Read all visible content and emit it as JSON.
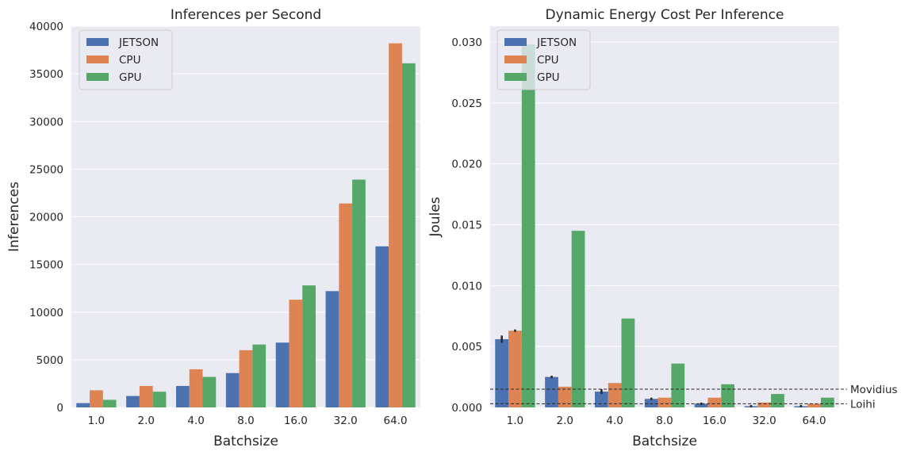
{
  "colors": {
    "JETSON": "#4c72b0",
    "CPU": "#dd8452",
    "GPU": "#55a868",
    "background": "#eaeaf2",
    "grid": "#ffffff",
    "errorbar": "#2b2b2b",
    "refline": "#262626"
  },
  "chart_data": [
    {
      "type": "bar",
      "title": "Inferences per Second",
      "xlabel": "Batchsize",
      "ylabel": "Inferences",
      "categories": [
        "1.0",
        "2.0",
        "4.0",
        "8.0",
        "16.0",
        "32.0",
        "64.0"
      ],
      "series": [
        {
          "name": "JETSON",
          "values": [
            450,
            1200,
            2250,
            3600,
            6800,
            12200,
            16900
          ]
        },
        {
          "name": "CPU",
          "values": [
            1800,
            2250,
            4000,
            6000,
            11300,
            21400,
            38200
          ]
        },
        {
          "name": "GPU",
          "values": [
            800,
            1650,
            3200,
            6600,
            12800,
            23900,
            36100
          ]
        }
      ],
      "ylim": [
        0,
        40000
      ],
      "yticks": [
        "0",
        "5000",
        "10000",
        "15000",
        "20000",
        "25000",
        "30000",
        "35000",
        "40000"
      ],
      "ytick_values": [
        0,
        5000,
        10000,
        15000,
        20000,
        25000,
        30000,
        35000,
        40000
      ],
      "grid": true,
      "legend": "top-left"
    },
    {
      "type": "bar",
      "title": "Dynamic Energy Cost Per Inference",
      "xlabel": "Batchsize",
      "ylabel": "Joules",
      "categories": [
        "1.0",
        "2.0",
        "4.0",
        "8.0",
        "16.0",
        "32.0",
        "64.0"
      ],
      "series": [
        {
          "name": "JETSON",
          "values": [
            0.0056,
            0.0025,
            0.0013,
            0.0007,
            0.0003,
            0.0001,
            0.0001
          ],
          "err": [
            0.0003,
            0.0001,
            0.0002,
            0.0001,
            0.0001,
            0.0001,
            0.0001
          ]
        },
        {
          "name": "CPU",
          "values": [
            0.0063,
            0.0017,
            0.002,
            0.0008,
            0.0008,
            0.0004,
            0.0003
          ],
          "err": [
            0.0001,
            0,
            0,
            0,
            0,
            0,
            0
          ]
        },
        {
          "name": "GPU",
          "values": [
            0.0298,
            0.0145,
            0.0073,
            0.0036,
            0.0019,
            0.0011,
            0.0008
          ],
          "err": [
            0,
            0,
            0,
            0,
            0,
            0,
            0
          ]
        }
      ],
      "ylim": [
        0,
        0.0313
      ],
      "yticks": [
        "0.000",
        "0.005",
        "0.010",
        "0.015",
        "0.020",
        "0.025",
        "0.030"
      ],
      "ytick_values": [
        0,
        0.005,
        0.01,
        0.015,
        0.02,
        0.025,
        0.03
      ],
      "reference_lines": [
        {
          "label": "Movidius",
          "value": 0.0015
        },
        {
          "label": "Loihi",
          "value": 0.0003
        }
      ],
      "grid": true,
      "legend": "top-left"
    }
  ]
}
